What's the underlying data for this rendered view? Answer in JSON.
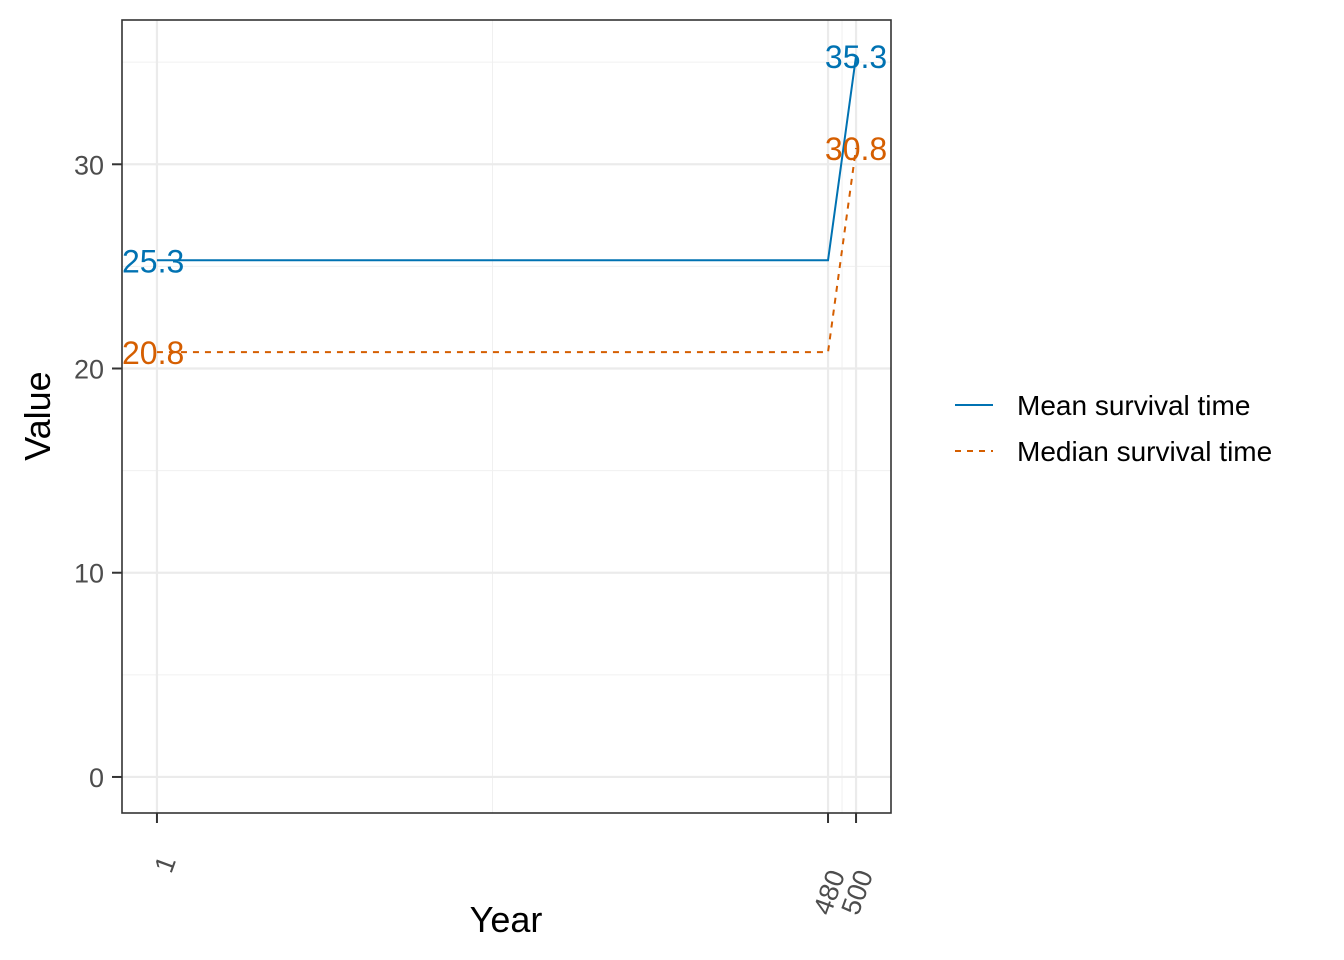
{
  "chart_data": {
    "type": "line",
    "title": "",
    "xlabel": "Year",
    "ylabel": "Value",
    "xlim": [
      -23.95,
      524.95
    ],
    "ylim": [
      -1.765,
      37.065
    ],
    "x_ticks": [
      1,
      480,
      500
    ],
    "x_tick_labels": [
      "1",
      "480",
      "500"
    ],
    "x_minor_ticks": [
      240.5,
      490
    ],
    "y_ticks": [
      0,
      10,
      20,
      30
    ],
    "y_tick_labels": [
      "0",
      "10",
      "20",
      "30"
    ],
    "y_minor_ticks": [
      5,
      15,
      25,
      35
    ],
    "grid": true,
    "legend_position": "right",
    "series": [
      {
        "name": "Mean survival time",
        "color": "#0072B2",
        "dash": "solid",
        "x": [
          1,
          480,
          500
        ],
        "values": [
          25.3,
          25.3,
          35.3
        ],
        "end_labels": [
          {
            "x": 1,
            "y": 25.3,
            "text": "25.3",
            "anchor": "start"
          },
          {
            "x": 500,
            "y": 35.3,
            "text": "35.3",
            "anchor": "middle"
          }
        ]
      },
      {
        "name": "Median survival time",
        "color": "#D55E00",
        "dash": "dashed",
        "x": [
          1,
          480,
          500
        ],
        "values": [
          20.8,
          20.8,
          30.8
        ],
        "end_labels": [
          {
            "x": 1,
            "y": 20.8,
            "text": "20.8",
            "anchor": "start"
          },
          {
            "x": 500,
            "y": 30.8,
            "text": "30.8",
            "anchor": "middle"
          }
        ]
      }
    ]
  }
}
